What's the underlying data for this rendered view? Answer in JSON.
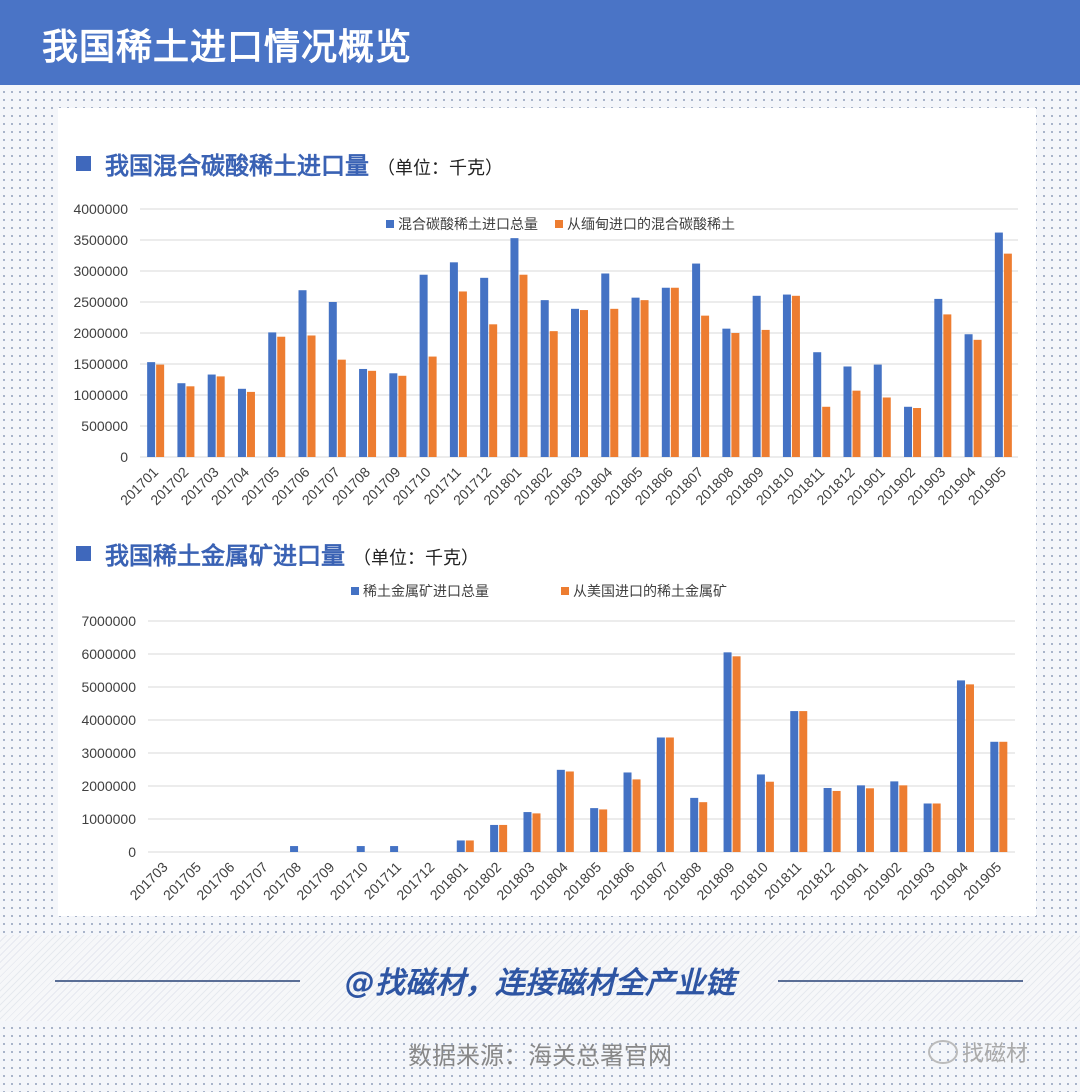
{
  "header": {
    "title": "我国稀土进口情况概览"
  },
  "colors": {
    "header": "#4a74c6",
    "series_blue": "#4472c4",
    "series_orange": "#ed7d31",
    "title_blue": "#3a62b4"
  },
  "chart_data": [
    {
      "type": "bar",
      "title": "我国混合碳酸稀土进口量",
      "unit": "（单位：千克）",
      "xlabel": "",
      "ylabel": "",
      "ylim": [
        0,
        4000000
      ],
      "yticks": [
        0,
        500000,
        1000000,
        1500000,
        2000000,
        2500000,
        3000000,
        3500000,
        4000000
      ],
      "grid": true,
      "legend_position": "top-center",
      "categories": [
        "201701",
        "201702",
        "201703",
        "201704",
        "201705",
        "201706",
        "201707",
        "201708",
        "201709",
        "201710",
        "201711",
        "201712",
        "201801",
        "201802",
        "201803",
        "201804",
        "201805",
        "201806",
        "201807",
        "201808",
        "201809",
        "201810",
        "201811",
        "201812",
        "201901",
        "201902",
        "201903",
        "201904",
        "201905"
      ],
      "series": [
        {
          "name": "混合碳酸稀土进口总量",
          "color": "#4472c4",
          "values": [
            1530000,
            1190000,
            1330000,
            1100000,
            2010000,
            2690000,
            2500000,
            1420000,
            1350000,
            2940000,
            3140000,
            2890000,
            3530000,
            2530000,
            2390000,
            2960000,
            2570000,
            2730000,
            3120000,
            2070000,
            2600000,
            2620000,
            1690000,
            1460000,
            1490000,
            810000,
            2550000,
            1980000,
            3620000
          ]
        },
        {
          "name": "从缅甸进口的混合碳酸稀土",
          "color": "#ed7d31",
          "values": [
            1490000,
            1140000,
            1300000,
            1050000,
            1940000,
            1960000,
            1570000,
            1390000,
            1310000,
            1620000,
            2670000,
            2140000,
            2940000,
            2030000,
            2370000,
            2390000,
            2530000,
            2730000,
            2280000,
            2000000,
            2050000,
            2600000,
            810000,
            1070000,
            960000,
            790000,
            2300000,
            1890000,
            3280000
          ]
        }
      ]
    },
    {
      "type": "bar",
      "title": "我国稀土金属矿进口量",
      "unit": "（单位：千克）",
      "xlabel": "",
      "ylabel": "",
      "ylim": [
        0,
        7000000
      ],
      "yticks": [
        0,
        1000000,
        2000000,
        3000000,
        4000000,
        5000000,
        6000000,
        7000000
      ],
      "grid": true,
      "legend_position": "top-center",
      "categories": [
        "201703",
        "201705",
        "201706",
        "201707",
        "201708",
        "201709",
        "201710",
        "201711",
        "201712",
        "201801",
        "201802",
        "201803",
        "201804",
        "201805",
        "201806",
        "201807",
        "201808",
        "201809",
        "201810",
        "201811",
        "201812",
        "201901",
        "201902",
        "201903",
        "201904",
        "201905"
      ],
      "series": [
        {
          "name": "稀土金属矿进口总量",
          "color": "#4472c4",
          "values": [
            0,
            0,
            0,
            0,
            180000,
            0,
            180000,
            180000,
            0,
            350000,
            820000,
            1210000,
            2490000,
            1330000,
            2410000,
            3470000,
            1640000,
            6050000,
            2350000,
            4270000,
            1940000,
            2020000,
            2140000,
            1470000,
            5200000,
            3340000
          ]
        },
        {
          "name": "从美国进口的稀土金属矿",
          "color": "#ed7d31",
          "values": [
            0,
            0,
            0,
            0,
            0,
            0,
            0,
            0,
            0,
            350000,
            820000,
            1170000,
            2440000,
            1290000,
            2200000,
            3470000,
            1510000,
            5930000,
            2130000,
            4270000,
            1850000,
            1930000,
            2020000,
            1470000,
            5080000,
            3340000
          ]
        }
      ]
    }
  ],
  "footer": {
    "slogan": "@找磁材，连接磁材全产业链",
    "source": "数据来源：海关总署官网",
    "brand": "找磁材"
  }
}
